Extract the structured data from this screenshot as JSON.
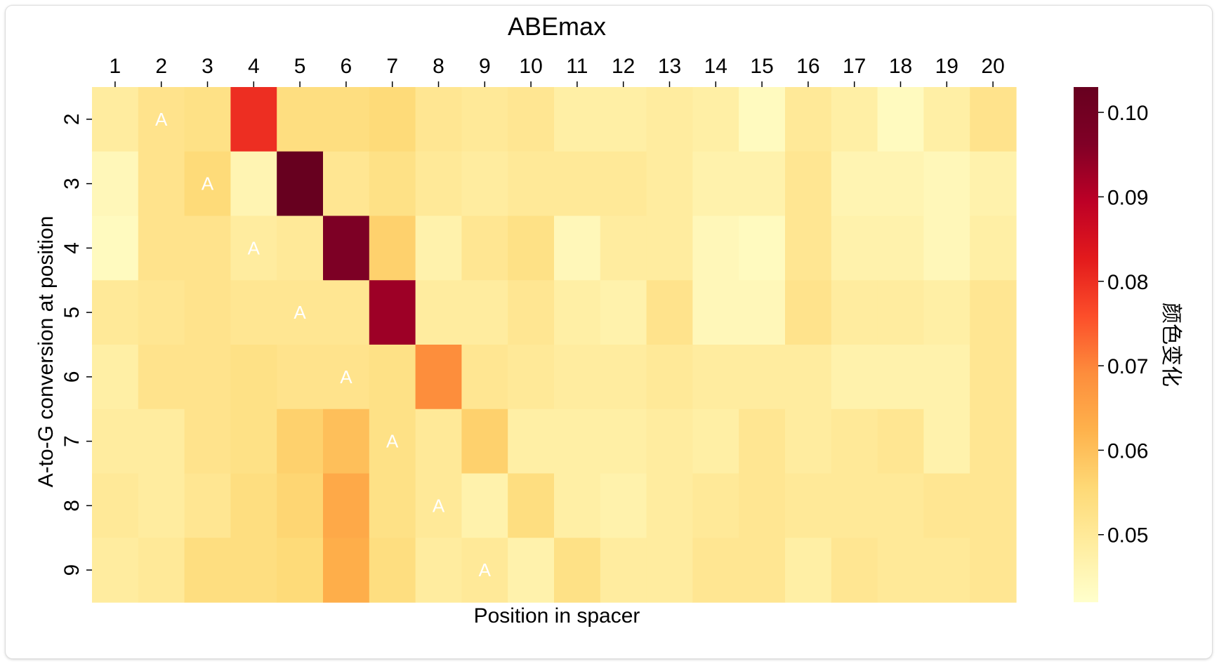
{
  "chart_data": {
    "type": "heatmap",
    "title": "ABEmax",
    "xlabel": "Position in spacer",
    "ylabel": "A-to-G conversion at position",
    "x_categories": [
      "1",
      "2",
      "3",
      "4",
      "5",
      "6",
      "7",
      "8",
      "9",
      "10",
      "11",
      "12",
      "13",
      "14",
      "15",
      "16",
      "17",
      "18",
      "19",
      "20"
    ],
    "y_categories": [
      "2",
      "3",
      "4",
      "5",
      "6",
      "7",
      "8",
      "9"
    ],
    "values": [
      [
        0.049,
        0.052,
        0.053,
        0.08,
        0.054,
        0.054,
        0.055,
        0.051,
        0.05,
        0.051,
        0.048,
        0.048,
        0.049,
        0.048,
        0.044,
        0.05,
        0.048,
        0.044,
        0.048,
        0.052
      ],
      [
        0.045,
        0.052,
        0.055,
        0.046,
        0.103,
        0.051,
        0.053,
        0.05,
        0.049,
        0.05,
        0.05,
        0.05,
        0.049,
        0.047,
        0.047,
        0.051,
        0.046,
        0.046,
        0.045,
        0.047
      ],
      [
        0.044,
        0.052,
        0.052,
        0.049,
        0.05,
        0.097,
        0.057,
        0.047,
        0.051,
        0.053,
        0.045,
        0.049,
        0.049,
        0.045,
        0.044,
        0.051,
        0.047,
        0.047,
        0.045,
        0.048
      ],
      [
        0.05,
        0.051,
        0.052,
        0.051,
        0.051,
        0.051,
        0.093,
        0.049,
        0.049,
        0.051,
        0.048,
        0.047,
        0.052,
        0.045,
        0.045,
        0.052,
        0.049,
        0.049,
        0.048,
        0.051
      ],
      [
        0.048,
        0.052,
        0.052,
        0.053,
        0.052,
        0.052,
        0.053,
        0.069,
        0.051,
        0.05,
        0.049,
        0.049,
        0.05,
        0.049,
        0.049,
        0.049,
        0.047,
        0.047,
        0.047,
        0.051
      ],
      [
        0.049,
        0.049,
        0.052,
        0.053,
        0.057,
        0.06,
        0.053,
        0.05,
        0.057,
        0.048,
        0.048,
        0.048,
        0.049,
        0.048,
        0.051,
        0.049,
        0.05,
        0.051,
        0.047,
        0.051
      ],
      [
        0.05,
        0.049,
        0.051,
        0.054,
        0.056,
        0.064,
        0.053,
        0.05,
        0.047,
        0.054,
        0.048,
        0.047,
        0.049,
        0.05,
        0.051,
        0.05,
        0.05,
        0.05,
        0.051,
        0.051
      ],
      [
        0.049,
        0.05,
        0.054,
        0.054,
        0.055,
        0.063,
        0.054,
        0.049,
        0.05,
        0.047,
        0.053,
        0.049,
        0.049,
        0.051,
        0.051,
        0.048,
        0.051,
        0.05,
        0.05,
        0.051
      ]
    ],
    "annotations": [
      {
        "row": 0,
        "col": 1,
        "text": "A"
      },
      {
        "row": 1,
        "col": 2,
        "text": "A"
      },
      {
        "row": 2,
        "col": 3,
        "text": "A"
      },
      {
        "row": 3,
        "col": 4,
        "text": "A"
      },
      {
        "row": 4,
        "col": 5,
        "text": "A"
      },
      {
        "row": 5,
        "col": 6,
        "text": "A"
      },
      {
        "row": 6,
        "col": 7,
        "text": "A"
      },
      {
        "row": 7,
        "col": 8,
        "text": "A"
      }
    ],
    "colorbar": {
      "label": "颜色变化",
      "range": [
        0.042,
        0.103
      ],
      "ticks": [
        0.05,
        0.06,
        0.07,
        0.08,
        0.09,
        0.1
      ],
      "tick_labels": [
        "0.05",
        "0.06",
        "0.07",
        "0.08",
        "0.09",
        "0.10"
      ],
      "colormap": "YlOrRd",
      "stops": [
        "#ffffcc",
        "#ffeda0",
        "#fed976",
        "#feb24c",
        "#fd8d3c",
        "#fc4e2a",
        "#e31a1c",
        "#bd0026",
        "#800026",
        "#67001f"
      ]
    },
    "x_axis_position": "top",
    "annotation_color": "#ffffff"
  }
}
